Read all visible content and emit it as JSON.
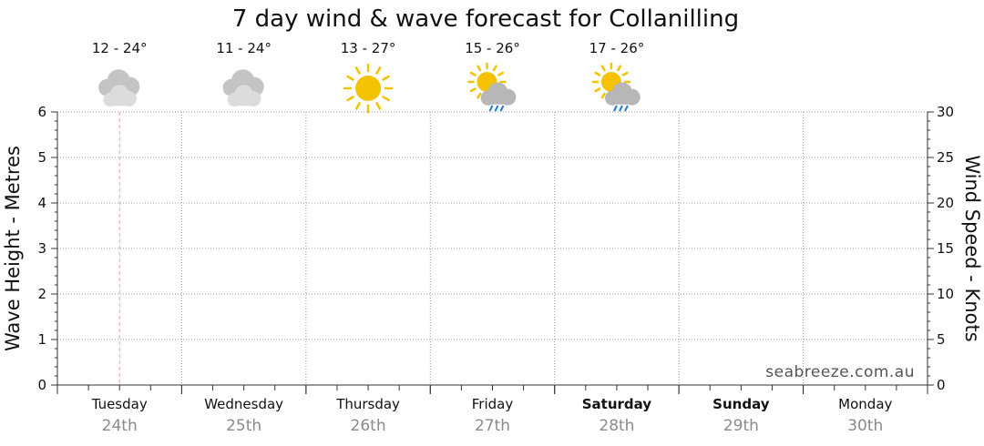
{
  "chart_data": {
    "type": "line",
    "title": "7 day wind & wave forecast for Collanilling",
    "ylabel_left": "Wave Height - Metres",
    "ylabel_right": "Wind Speed - Knots",
    "ylim_left": [
      0,
      6
    ],
    "ylim_right": [
      0,
      30
    ],
    "yticks_left": [
      "0",
      "1",
      "2",
      "3",
      "4",
      "5",
      "6"
    ],
    "yticks_right": [
      "0",
      "5",
      "10",
      "15",
      "20",
      "25",
      "30"
    ],
    "grid": true,
    "current_time_marker": "Tuesday 24th",
    "days": [
      {
        "name": "Tuesday",
        "date": "24th",
        "bold": false,
        "temp": "12 - 24°",
        "icon": "cloudy-icon"
      },
      {
        "name": "Wednesday",
        "date": "25th",
        "bold": false,
        "temp": "11 - 24°",
        "icon": "cloudy-icon"
      },
      {
        "name": "Thursday",
        "date": "26th",
        "bold": false,
        "temp": "13 - 27°",
        "icon": "sunny-icon"
      },
      {
        "name": "Friday",
        "date": "27th",
        "bold": false,
        "temp": "15 - 26°",
        "icon": "sun-showers-icon"
      },
      {
        "name": "Saturday",
        "date": "28th",
        "bold": true,
        "temp": "17 - 26°",
        "icon": "sun-showers-icon"
      },
      {
        "name": "Sunday",
        "date": "29th",
        "bold": true,
        "temp": "",
        "icon": ""
      },
      {
        "name": "Monday",
        "date": "30th",
        "bold": false,
        "temp": "",
        "icon": ""
      }
    ],
    "series": []
  },
  "watermark": "seabreeze.com.au",
  "colors": {
    "sun": "#f5c200",
    "cloud": "#c9c9c9",
    "rain": "#1e7bd6",
    "now_marker": "#f0a0a0"
  }
}
